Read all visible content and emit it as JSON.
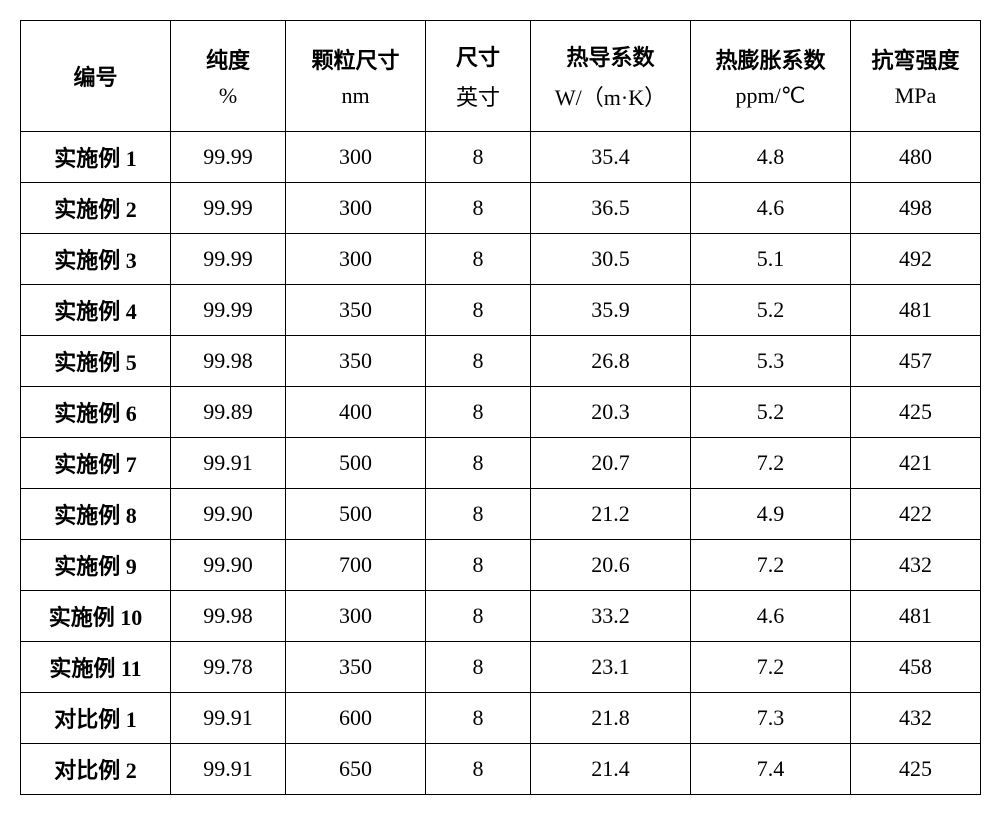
{
  "table": {
    "background_color": "#ffffff",
    "border_color": "#000000",
    "text_color": "#000000",
    "font_size_pt": 16,
    "columns": [
      {
        "line1": "编号",
        "line2": ""
      },
      {
        "line1": "纯度",
        "line2": "%"
      },
      {
        "line1": "颗粒尺寸",
        "line2": "nm"
      },
      {
        "line1": "尺寸",
        "line2": "英寸"
      },
      {
        "line1": "热导系数",
        "line2": "W/（m·K）"
      },
      {
        "line1": "热膨胀系数",
        "line2": "ppm/℃"
      },
      {
        "line1": "抗弯强度",
        "line2": "MPa"
      }
    ],
    "rows": [
      {
        "label": "实施例 1",
        "purity": "99.99",
        "particle": "300",
        "size": "8",
        "thermal_cond": "35.4",
        "cte": "4.8",
        "flexural": "480"
      },
      {
        "label": "实施例 2",
        "purity": "99.99",
        "particle": "300",
        "size": "8",
        "thermal_cond": "36.5",
        "cte": "4.6",
        "flexural": "498"
      },
      {
        "label": "实施例 3",
        "purity": "99.99",
        "particle": "300",
        "size": "8",
        "thermal_cond": "30.5",
        "cte": "5.1",
        "flexural": "492"
      },
      {
        "label": "实施例 4",
        "purity": "99.99",
        "particle": "350",
        "size": "8",
        "thermal_cond": "35.9",
        "cte": "5.2",
        "flexural": "481"
      },
      {
        "label": "实施例 5",
        "purity": "99.98",
        "particle": "350",
        "size": "8",
        "thermal_cond": "26.8",
        "cte": "5.3",
        "flexural": "457"
      },
      {
        "label": "实施例 6",
        "purity": "99.89",
        "particle": "400",
        "size": "8",
        "thermal_cond": "20.3",
        "cte": "5.2",
        "flexural": "425"
      },
      {
        "label": "实施例 7",
        "purity": "99.91",
        "particle": "500",
        "size": "8",
        "thermal_cond": "20.7",
        "cte": "7.2",
        "flexural": "421"
      },
      {
        "label": "实施例 8",
        "purity": "99.90",
        "particle": "500",
        "size": "8",
        "thermal_cond": "21.2",
        "cte": "4.9",
        "flexural": "422"
      },
      {
        "label": "实施例 9",
        "purity": "99.90",
        "particle": "700",
        "size": "8",
        "thermal_cond": "20.6",
        "cte": "7.2",
        "flexural": "432"
      },
      {
        "label": "实施例 10",
        "purity": "99.98",
        "particle": "300",
        "size": "8",
        "thermal_cond": "33.2",
        "cte": "4.6",
        "flexural": "481"
      },
      {
        "label": "实施例 11",
        "purity": "99.78",
        "particle": "350",
        "size": "8",
        "thermal_cond": "23.1",
        "cte": "7.2",
        "flexural": "458"
      },
      {
        "label": "对比例 1",
        "purity": "99.91",
        "particle": "600",
        "size": "8",
        "thermal_cond": "21.8",
        "cte": "7.3",
        "flexural": "432"
      },
      {
        "label": "对比例 2",
        "purity": "99.91",
        "particle": "650",
        "size": "8",
        "thermal_cond": "21.4",
        "cte": "7.4",
        "flexural": "425"
      }
    ]
  }
}
